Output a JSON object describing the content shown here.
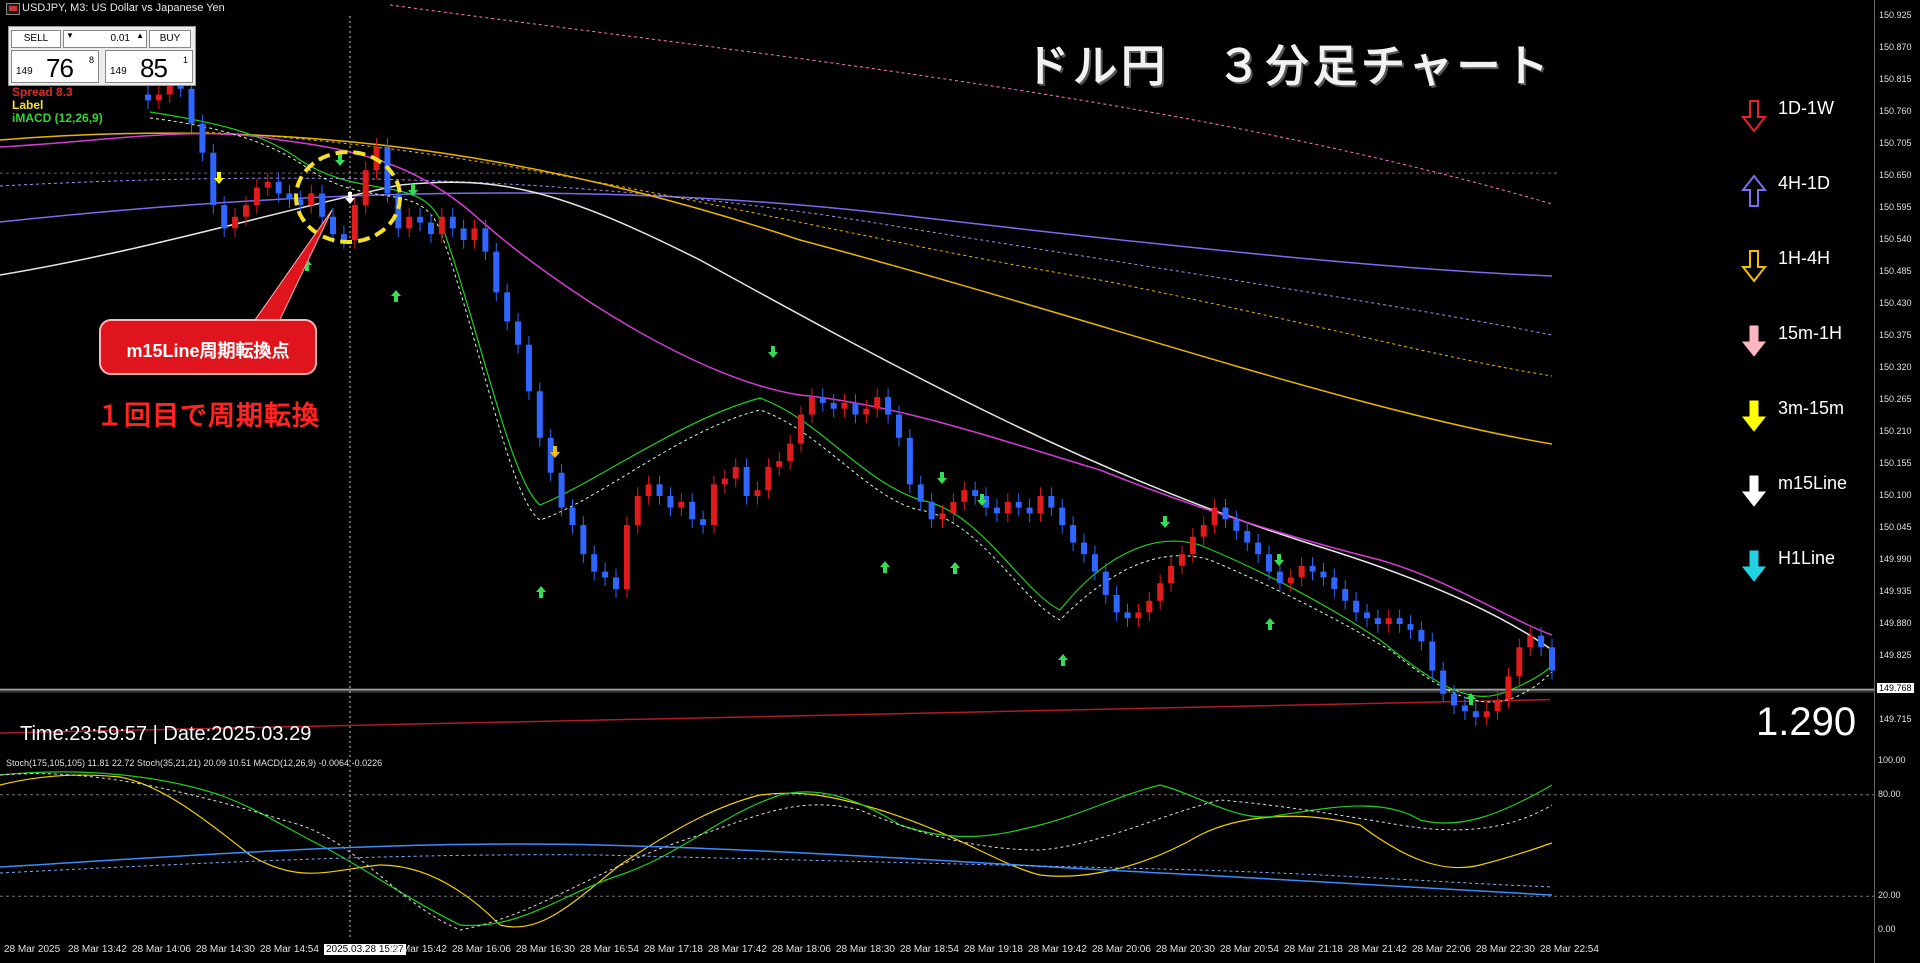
{
  "window": {
    "title": "USDJPY, M3:  US Dollar vs Japanese Yen"
  },
  "trade_panel": {
    "sell_label": "SELL",
    "buy_label": "BUY",
    "lot": "0.01",
    "bid": {
      "prefix": "149",
      "big": "76",
      "sup": "8"
    },
    "ask": {
      "prefix": "149",
      "big": "85",
      "sup": "1"
    }
  },
  "indicators": {
    "spread": "Spread 8.3",
    "label": "Label",
    "macd": "iMACD  (12,26,9)"
  },
  "heading": "ドル円　３分足チャート",
  "legend": [
    {
      "label": "1D-1W",
      "icon": "down-arrow-red-outline",
      "color": "#e8202a"
    },
    {
      "label": "4H-1D",
      "icon": "up-arrow-purple-outline",
      "color": "#7b6cf0"
    },
    {
      "label": "1H-4H",
      "icon": "down-arrow-yellow-outline",
      "color": "#f0c000"
    },
    {
      "label": "15m-1H",
      "icon": "down-arrow-pink",
      "color": "#ffb6c1"
    },
    {
      "label": "3m-15m",
      "icon": "down-arrow-yellow",
      "color": "#ffff00"
    },
    {
      "label": "m15Line",
      "icon": "down-arrow-white",
      "color": "#ffffff"
    },
    {
      "label": "H1Line",
      "icon": "down-arrow-cyan",
      "color": "#22d3e6"
    }
  ],
  "annotation": {
    "callout": "m15Line周期転換点",
    "subtitle": "１回目で周期転換"
  },
  "status": {
    "time": "Time:23:59:57 | Date:2025.03.29",
    "value": "1.290"
  },
  "price_axis": {
    "labels": [
      "150.925",
      "150.870",
      "150.815",
      "150.760",
      "150.705",
      "150.650",
      "150.595",
      "150.540",
      "150.485",
      "150.430",
      "150.375",
      "150.320",
      "150.265",
      "150.210",
      "150.155",
      "150.100",
      "150.045",
      "149.990",
      "149.935",
      "149.880",
      "149.825",
      "149.715"
    ],
    "current": "149.768"
  },
  "sub_window": {
    "label": "Stoch(175,105,105) 11.81 22.72 Stoch(35,21,21) 20.09 10.51 MACD(12,26,9) -0.0064 -0.0226",
    "levels": [
      "100.00",
      "80.00",
      "20.00",
      "0.00"
    ]
  },
  "time_axis": {
    "labels": [
      "28 Mar 2025",
      "28 Mar 13:42",
      "28 Mar 14:06",
      "28 Mar 14:30",
      "28 Mar 14:54",
      "2025.03.28 15:27",
      "28 Mar 15:42",
      "28 Mar 16:06",
      "28 Mar 16:30",
      "28 Mar 16:54",
      "28 Mar 17:18",
      "28 Mar 17:42",
      "28 Mar 18:06",
      "28 Mar 18:30",
      "28 Mar 18:54",
      "28 Mar 19:18",
      "28 Mar 19:42",
      "28 Mar 20:06",
      "28 Mar 20:30",
      "28 Mar 20:54",
      "28 Mar 21:18",
      "28 Mar 21:42",
      "28 Mar 22:06",
      "28 Mar 22:30",
      "28 Mar 22:54"
    ],
    "highlight_index": 5
  },
  "colors": {
    "bull": "#e01b1b",
    "bear": "#2f66ff",
    "ma_magenta": "#d33cd3",
    "ma_white": "#e6e6e6",
    "ma_gold": "#e8b400",
    "ma_purple": "#7a6cf0",
    "ma_green": "#22cc22"
  },
  "chart_data": {
    "type": "line",
    "price_closes": [
      150.78,
      150.79,
      150.81,
      150.8,
      150.74,
      150.69,
      150.6,
      150.56,
      150.58,
      150.6,
      150.63,
      150.64,
      150.62,
      150.61,
      150.6,
      150.62,
      150.58,
      150.55,
      150.54,
      150.6,
      150.66,
      150.7,
      150.62,
      150.56,
      150.58,
      150.57,
      150.55,
      150.58,
      150.56,
      150.54,
      150.56,
      150.52,
      150.45,
      150.4,
      150.36,
      150.28,
      150.2,
      150.14,
      150.08,
      150.05,
      150.0,
      149.97,
      149.96,
      149.94,
      150.05,
      150.1,
      150.12,
      150.1,
      150.08,
      150.09,
      150.06,
      150.05,
      150.12,
      150.13,
      150.15,
      150.1,
      150.11,
      150.15,
      150.16,
      150.19,
      150.24,
      150.27,
      150.26,
      150.25,
      150.26,
      150.24,
      150.25,
      150.27,
      150.24,
      150.2,
      150.12,
      150.09,
      150.06,
      150.07,
      150.09,
      150.11,
      150.1,
      150.08,
      150.07,
      150.09,
      150.08,
      150.07,
      150.1,
      150.08,
      150.05,
      150.02,
      150.0,
      149.97,
      149.93,
      149.9,
      149.89,
      149.9,
      149.92,
      149.95,
      149.98,
      150.0,
      150.03,
      150.05,
      150.08,
      150.06,
      150.04,
      150.02,
      150.0,
      149.97,
      149.95,
      149.96,
      149.98,
      149.97,
      149.96,
      149.94,
      149.92,
      149.9,
      149.89,
      149.88,
      149.89,
      149.88,
      149.87,
      149.85,
      149.8,
      149.76,
      149.74,
      149.73,
      149.72,
      149.73,
      149.75,
      149.79,
      149.84,
      149.86,
      149.84,
      149.8
    ]
  }
}
